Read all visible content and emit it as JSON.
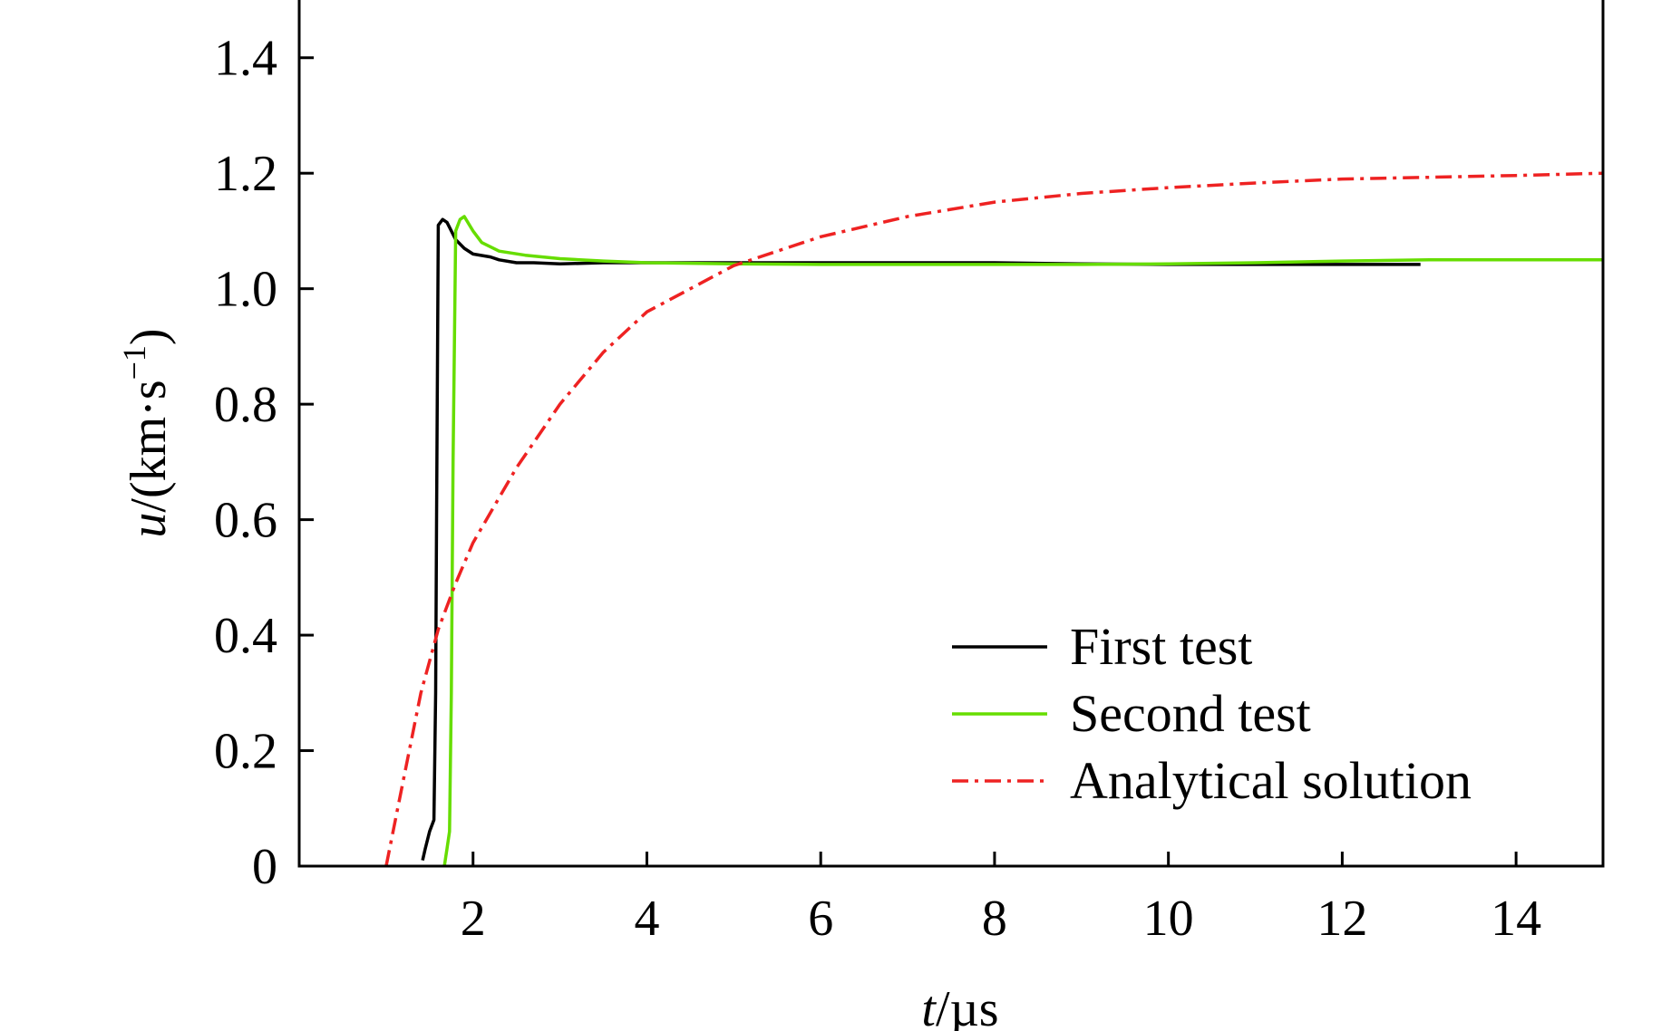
{
  "chart_data": {
    "type": "line",
    "xlabel": {
      "var": "t",
      "unit": "/µs"
    },
    "ylabel": {
      "var": "u",
      "unit": "/(km·s",
      "exp": "−1",
      "close": ")"
    },
    "xlim": [
      0,
      15
    ],
    "ylim": [
      0,
      1.5
    ],
    "x_ticks": [
      2,
      4,
      6,
      8,
      10,
      12,
      14
    ],
    "y_ticks": [
      0,
      0.2,
      0.4,
      0.6,
      0.8,
      1.0,
      1.2,
      1.4
    ],
    "x_tick_labels": [
      "2",
      "4",
      "6",
      "8",
      "10",
      "12",
      "14"
    ],
    "y_tick_labels": [
      "0",
      "0.2",
      "0.4",
      "0.6",
      "0.8",
      "1.0",
      "1.2",
      "1.4"
    ],
    "legend_position": "bottom-right",
    "series": [
      {
        "name": "First test",
        "color": "#000000",
        "style": "solid",
        "points": [
          [
            1.42,
            0.01
          ],
          [
            1.45,
            0.03
          ],
          [
            1.5,
            0.06
          ],
          [
            1.55,
            0.08
          ],
          [
            1.57,
            0.3
          ],
          [
            1.58,
            0.6
          ],
          [
            1.6,
            1.11
          ],
          [
            1.65,
            1.12
          ],
          [
            1.7,
            1.115
          ],
          [
            1.75,
            1.1
          ],
          [
            1.8,
            1.085
          ],
          [
            1.9,
            1.07
          ],
          [
            2.0,
            1.06
          ],
          [
            2.2,
            1.055
          ],
          [
            2.3,
            1.05
          ],
          [
            2.5,
            1.045
          ],
          [
            2.7,
            1.045
          ],
          [
            3.0,
            1.043
          ],
          [
            3.5,
            1.045
          ],
          [
            4.0,
            1.045
          ],
          [
            5.0,
            1.045
          ],
          [
            6.0,
            1.045
          ],
          [
            7.0,
            1.045
          ],
          [
            8.0,
            1.045
          ],
          [
            9.0,
            1.043
          ],
          [
            10.0,
            1.042
          ],
          [
            11.0,
            1.042
          ],
          [
            12.0,
            1.042
          ],
          [
            12.9,
            1.042
          ]
        ]
      },
      {
        "name": "Second test",
        "color": "#66dd00",
        "style": "solid",
        "points": [
          [
            1.67,
            0.0
          ],
          [
            1.7,
            0.03
          ],
          [
            1.73,
            0.06
          ],
          [
            1.75,
            0.3
          ],
          [
            1.77,
            0.7
          ],
          [
            1.8,
            1.1
          ],
          [
            1.85,
            1.12
          ],
          [
            1.9,
            1.125
          ],
          [
            2.0,
            1.1
          ],
          [
            2.1,
            1.08
          ],
          [
            2.3,
            1.065
          ],
          [
            2.6,
            1.058
          ],
          [
            3.0,
            1.052
          ],
          [
            3.5,
            1.048
          ],
          [
            4.0,
            1.045
          ],
          [
            5.0,
            1.043
          ],
          [
            6.0,
            1.042
          ],
          [
            7.0,
            1.042
          ],
          [
            8.0,
            1.042
          ],
          [
            9.0,
            1.042
          ],
          [
            10.0,
            1.043
          ],
          [
            11.0,
            1.045
          ],
          [
            12.0,
            1.048
          ],
          [
            13.0,
            1.05
          ],
          [
            14.0,
            1.05
          ],
          [
            15.0,
            1.05
          ]
        ]
      },
      {
        "name": "Analytical solution",
        "color": "#ee2222",
        "style": "dashdot",
        "points": [
          [
            1.0,
            0.0
          ],
          [
            1.2,
            0.15
          ],
          [
            1.4,
            0.3
          ],
          [
            1.6,
            0.41
          ],
          [
            1.8,
            0.49
          ],
          [
            2.0,
            0.56
          ],
          [
            2.5,
            0.69
          ],
          [
            3.0,
            0.8
          ],
          [
            3.5,
            0.89
          ],
          [
            4.0,
            0.96
          ],
          [
            4.5,
            1.0
          ],
          [
            5.0,
            1.04
          ],
          [
            5.5,
            1.065
          ],
          [
            6.0,
            1.09
          ],
          [
            7.0,
            1.125
          ],
          [
            8.0,
            1.15
          ],
          [
            9.0,
            1.165
          ],
          [
            10.0,
            1.175
          ],
          [
            11.0,
            1.183
          ],
          [
            12.0,
            1.19
          ],
          [
            13.0,
            1.193
          ],
          [
            14.0,
            1.196
          ],
          [
            15.0,
            1.2
          ]
        ]
      }
    ]
  }
}
